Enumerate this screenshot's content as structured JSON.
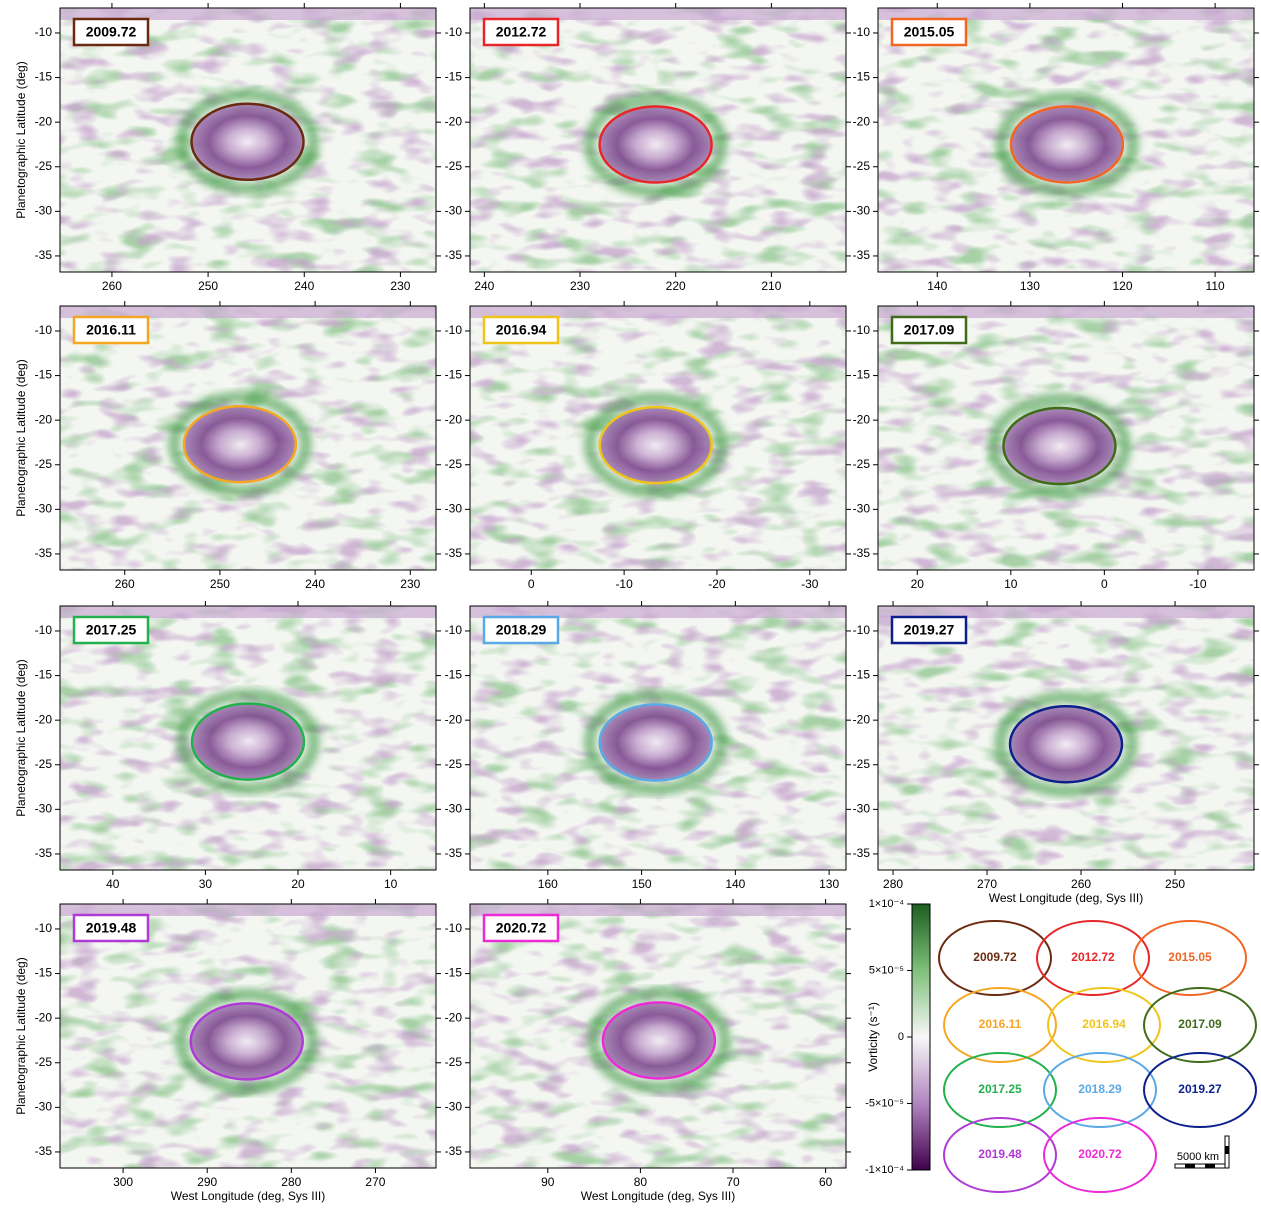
{
  "chart_data": [
    {
      "type": "map",
      "title": "2009.72",
      "color": "#6b2a10",
      "xlim": [
        265.4,
        226.3
      ],
      "xticks": [
        260,
        250,
        240,
        230
      ],
      "ylim": [
        -36.8,
        -7.2
      ],
      "yticks": [
        -10,
        -15,
        -20,
        -25,
        -30,
        -35
      ],
      "ellipse_center": {
        "lon": 245.9,
        "lat": -22.2
      }
    },
    {
      "type": "map",
      "title": "2012.72",
      "color": "#e8262a",
      "xlim": [
        241.5,
        202.2
      ],
      "xticks": [
        240,
        230,
        220,
        210
      ],
      "ylim": [
        -36.8,
        -7.2
      ],
      "yticks": [
        -10,
        -15,
        -20,
        -25,
        -30,
        -35
      ],
      "ellipse_center": {
        "lon": 222.1,
        "lat": -22.5
      }
    },
    {
      "type": "map",
      "title": "2015.05",
      "color": "#f26522",
      "xlim": [
        146.4,
        105.8
      ],
      "xticks": [
        140,
        130,
        120,
        110
      ],
      "ylim": [
        -36.8,
        -7.2
      ],
      "yticks": [
        -10,
        -15,
        -20,
        -25,
        -30,
        -35
      ],
      "ellipse_center": {
        "lon": 126.0,
        "lat": -22.5
      }
    },
    {
      "type": "map",
      "title": "2016.11",
      "color": "#f5a623",
      "xlim": [
        266.8,
        227.3
      ],
      "xticks": [
        260,
        250,
        240,
        230
      ],
      "ylim": [
        -36.8,
        -7.2
      ],
      "yticks": [
        -10,
        -15,
        -20,
        -25,
        -30,
        -35
      ],
      "ellipse_center": {
        "lon": 247.9,
        "lat": -22.7
      }
    },
    {
      "type": "map",
      "title": "2016.94",
      "color": "#f0c419",
      "xlim": [
        6.6,
        -33.9
      ],
      "xticks": [
        0,
        -10,
        -20,
        -30
      ],
      "ylim": [
        -36.8,
        -7.2
      ],
      "yticks": [
        -10,
        -15,
        -20,
        -25,
        -30,
        -35
      ],
      "ellipse_center": {
        "lon": -13.4,
        "lat": -22.8
      }
    },
    {
      "type": "map",
      "title": "2017.09",
      "color": "#3f6b1a",
      "xlim": [
        24.2,
        -16.0
      ],
      "xticks": [
        20,
        10,
        0,
        -10
      ],
      "ylim": [
        -36.8,
        -7.2
      ],
      "yticks": [
        -10,
        -15,
        -20,
        -25,
        -30,
        -35
      ],
      "ellipse_center": {
        "lon": 4.8,
        "lat": -22.9
      }
    },
    {
      "type": "map",
      "title": "2017.25",
      "color": "#22b14c",
      "xlim": [
        45.7,
        5.1
      ],
      "xticks": [
        40,
        30,
        20,
        10
      ],
      "ylim": [
        -36.8,
        -7.2
      ],
      "yticks": [
        -10,
        -15,
        -20,
        -25,
        -30,
        -35
      ],
      "ellipse_center": {
        "lon": 25.4,
        "lat": -22.4
      }
    },
    {
      "type": "map",
      "title": "2018.29",
      "color": "#5aa9e6",
      "xlim": [
        168.3,
        128.2
      ],
      "xticks": [
        160,
        150,
        140,
        130
      ],
      "ylim": [
        -36.8,
        -7.2
      ],
      "yticks": [
        -10,
        -15,
        -20,
        -25,
        -30,
        -35
      ],
      "ellipse_center": {
        "lon": 148.5,
        "lat": -22.5
      }
    },
    {
      "type": "map",
      "title": "2019.27",
      "color": "#0d1f8c",
      "xlim": [
        281.6,
        241.6
      ],
      "xticks": [
        280,
        270,
        260,
        250
      ],
      "ylim": [
        -36.8,
        -7.2
      ],
      "yticks": [
        -10,
        -15,
        -20,
        -25,
        -30,
        -35
      ],
      "ellipse_center": {
        "lon": 261.6,
        "lat": -22.7
      }
    },
    {
      "type": "map",
      "title": "2019.48",
      "color": "#b03ad6",
      "xlim": [
        307.5,
        262.8
      ],
      "xticks": [
        300,
        290,
        280,
        270
      ],
      "ylim": [
        -36.8,
        -7.2
      ],
      "yticks": [
        -10,
        -15,
        -20,
        -25,
        -30,
        -35
      ],
      "ellipse_center": {
        "lon": 285.3,
        "lat": -22.6
      }
    },
    {
      "type": "map",
      "title": "2020.72",
      "color": "#ec2ad6",
      "xlim": [
        98.4,
        57.8
      ],
      "xticks": [
        90,
        80,
        70,
        60
      ],
      "ylim": [
        -36.8,
        -7.2
      ],
      "yticks": [
        -10,
        -15,
        -20,
        -25,
        -30,
        -35
      ],
      "ellipse_center": {
        "lon": 78.0,
        "lat": -22.5
      }
    }
  ],
  "ylabel": "Planetographic Latitude (deg)",
  "xlabel": "West Longitude (deg, Sys III)",
  "colorbar": {
    "label": "Vorticity (s⁻¹)",
    "lim": [
      -0.0001,
      0.0001
    ],
    "ticks": [
      {
        "value": 0.0001,
        "label": "1×10⁻⁴"
      },
      {
        "value": 5e-05,
        "label": "5×10⁻⁵"
      },
      0,
      {
        "value": -5e-05,
        "label": "-5×10⁻⁵"
      },
      {
        "value": -0.0001,
        "label": "-1×10⁻⁴"
      }
    ]
  },
  "scale_bar": "5000 km"
}
